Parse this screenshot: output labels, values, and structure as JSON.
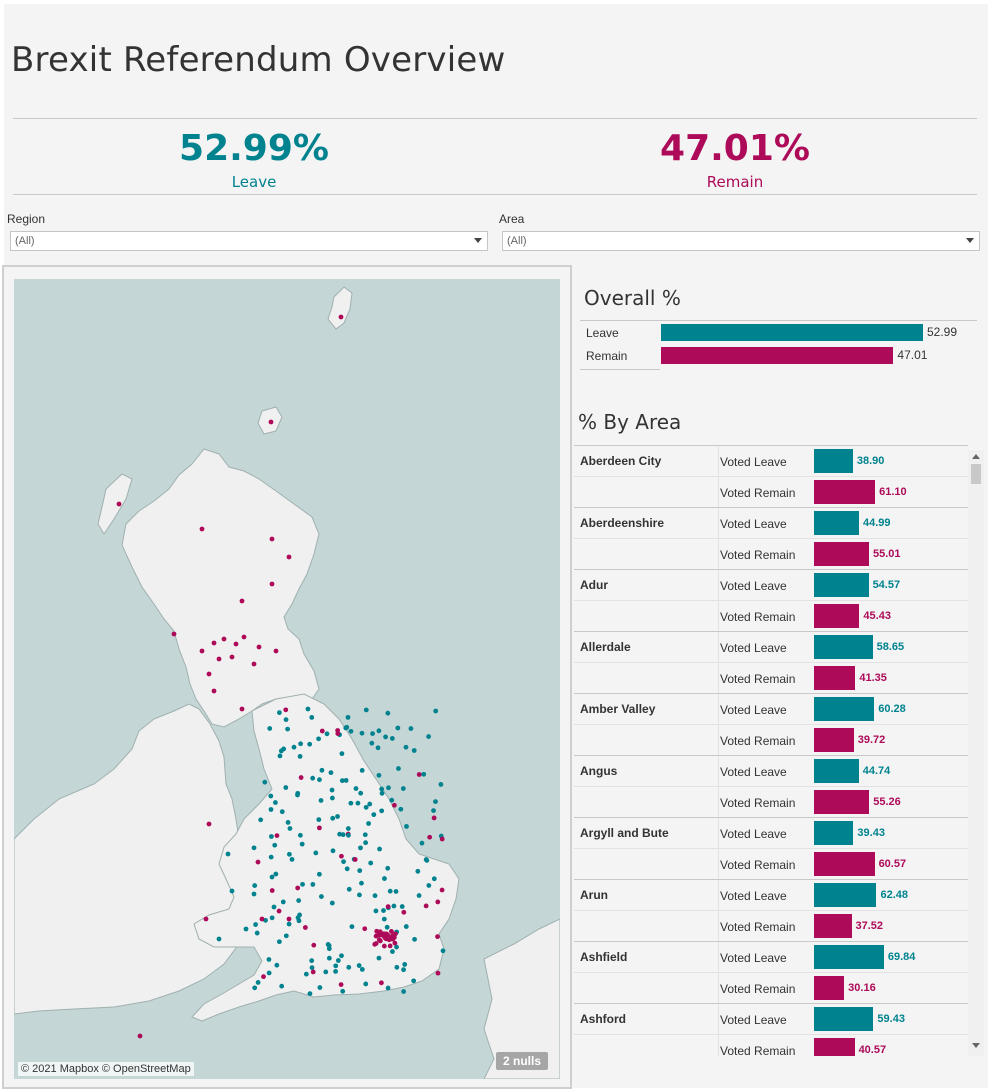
{
  "title": "Brexit Referendum Overview",
  "kpi": {
    "leave": {
      "value": "52.99%",
      "label": "Leave"
    },
    "remain": {
      "value": "47.01%",
      "label": "Remain"
    }
  },
  "colors": {
    "leave": "#00838f",
    "remain": "#ad0b59",
    "sea": "#c4d6d5",
    "land": "#f0f0f0"
  },
  "filters": {
    "region": {
      "label": "Region",
      "value": "(All)"
    },
    "area": {
      "label": "Area",
      "value": "(All)"
    }
  },
  "map": {
    "attribution": "© 2021 Mapbox © OpenStreetMap",
    "nulls": "2 nulls"
  },
  "overall": {
    "title": "Overall %",
    "rows": [
      {
        "label": "Leave",
        "value": 52.99,
        "value_text": "52.99"
      },
      {
        "label": "Remain",
        "value": 47.01,
        "value_text": "47.01"
      }
    ]
  },
  "by_area": {
    "title": "% By Area",
    "leave_label": "Voted Leave",
    "remain_label": "Voted Remain",
    "areas": [
      {
        "name": "Aberdeen City",
        "leave": 38.9,
        "remain": 61.1,
        "leave_text": "38.90",
        "remain_text": "61.10"
      },
      {
        "name": "Aberdeenshire",
        "leave": 44.99,
        "remain": 55.01,
        "leave_text": "44.99",
        "remain_text": "55.01"
      },
      {
        "name": "Adur",
        "leave": 54.57,
        "remain": 45.43,
        "leave_text": "54.57",
        "remain_text": "45.43"
      },
      {
        "name": "Allerdale",
        "leave": 58.65,
        "remain": 41.35,
        "leave_text": "58.65",
        "remain_text": "41.35"
      },
      {
        "name": "Amber Valley",
        "leave": 60.28,
        "remain": 39.72,
        "leave_text": "60.28",
        "remain_text": "39.72"
      },
      {
        "name": "Angus",
        "leave": 44.74,
        "remain": 55.26,
        "leave_text": "44.74",
        "remain_text": "55.26"
      },
      {
        "name": "Argyll and Bute",
        "leave": 39.43,
        "remain": 60.57,
        "leave_text": "39.43",
        "remain_text": "60.57"
      },
      {
        "name": "Arun",
        "leave": 62.48,
        "remain": 37.52,
        "leave_text": "62.48",
        "remain_text": "37.52"
      },
      {
        "name": "Ashfield",
        "leave": 69.84,
        "remain": 30.16,
        "leave_text": "69.84",
        "remain_text": "30.16"
      },
      {
        "name": "Ashford",
        "leave": 59.43,
        "remain": 40.57,
        "leave_text": "59.43",
        "remain_text": "40.57"
      }
    ]
  }
}
